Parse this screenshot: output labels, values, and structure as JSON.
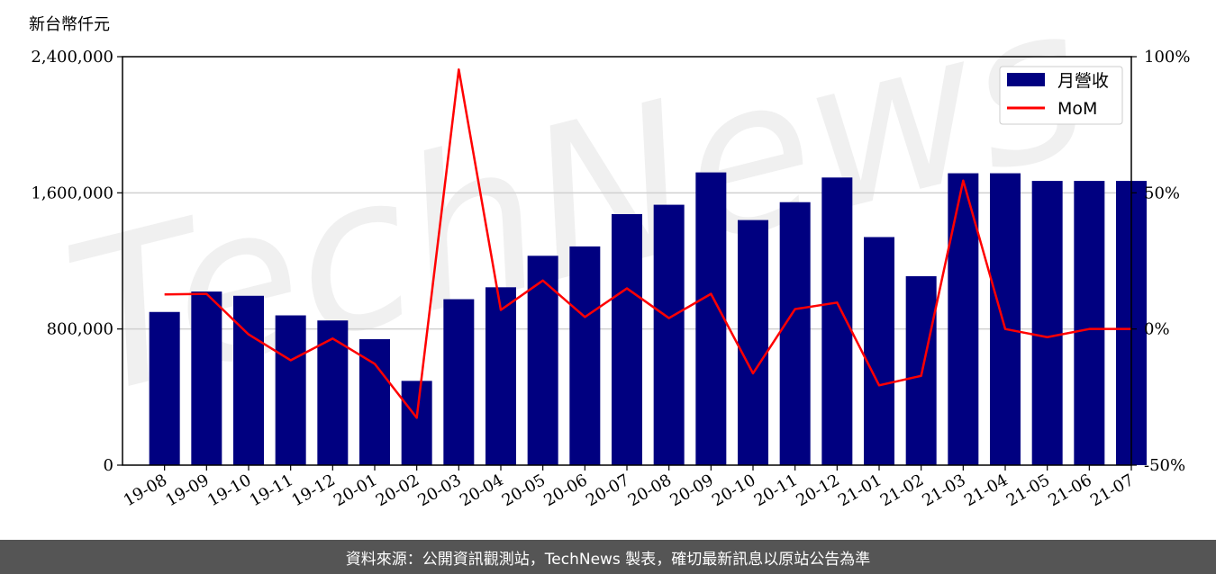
{
  "chart_data": {
    "type": "bar",
    "unit_label": "新台幣仟元",
    "categories": [
      "19-08",
      "19-09",
      "19-10",
      "19-11",
      "19-12",
      "20-01",
      "20-02",
      "20-03",
      "20-04",
      "20-05",
      "20-06",
      "20-07",
      "20-08",
      "20-09",
      "20-10",
      "20-11",
      "20-12",
      "21-01",
      "21-02",
      "21-03",
      "21-04",
      "21-05",
      "21-06",
      "21-07"
    ],
    "series": [
      {
        "name": "月營收",
        "axis": "left",
        "color": "#000080",
        "values": [
          900000,
          1020000,
          995000,
          880000,
          850000,
          740000,
          495000,
          975000,
          1045000,
          1230000,
          1285000,
          1475000,
          1530000,
          1720000,
          1440000,
          1545000,
          1690000,
          1340000,
          1110000,
          1715000,
          1715000,
          1670000,
          1670000,
          1670000
        ]
      },
      {
        "name": "MoM",
        "axis": "right",
        "color": "#ff0000",
        "type": "line",
        "values": [
          12.7,
          12.9,
          -2,
          -11.5,
          -3.5,
          -12.8,
          -32.6,
          95.3,
          7,
          17.8,
          4.4,
          14.9,
          4,
          12.9,
          -16.3,
          7.3,
          9.7,
          -20.7,
          -17.2,
          54.5,
          0,
          -3,
          0,
          0
        ]
      }
    ],
    "y_left": {
      "ylim": [
        0,
        2400000
      ],
      "ticks": [
        0,
        800000,
        1600000,
        2400000
      ],
      "tick_labels": [
        "0",
        "800,000",
        "1,600,000",
        "2,400,000"
      ]
    },
    "y_right": {
      "ylim": [
        -50,
        100
      ],
      "ticks": [
        -50,
        0,
        50,
        100
      ],
      "tick_labels": [
        "-50%",
        "0%",
        "50%",
        "100%"
      ]
    },
    "grid": "horizontal",
    "legend": "top-right"
  },
  "watermark": "TechNews",
  "footer": {
    "text": "資料來源：公開資訊觀測站，TechNews 製表，確切最新訊息以原站公告為準"
  }
}
